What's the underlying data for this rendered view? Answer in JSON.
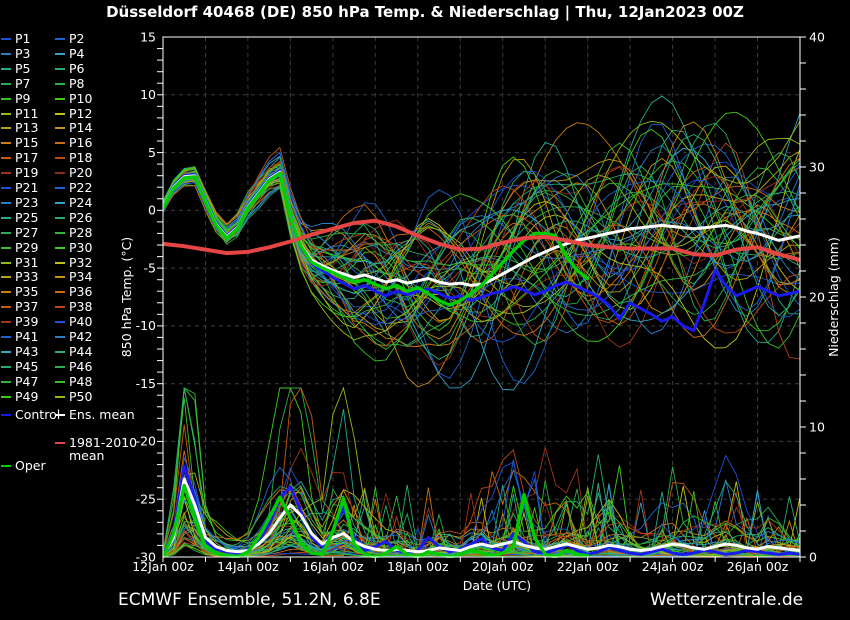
{
  "header": {
    "title": "Düsseldorf 40468 (DE)  850 hPa Temp. & Niederschlag | Thu, 12Jan2023 00Z"
  },
  "footer": {
    "left": "ECMWF Ensemble, 51.2N, 6.8E",
    "right": "Wetterzentrale.de"
  },
  "legend": {
    "members": [
      "P1",
      "P2",
      "P3",
      "P4",
      "P5",
      "P6",
      "P7",
      "P8",
      "P9",
      "P10",
      "P11",
      "P12",
      "P13",
      "P14",
      "P15",
      "P16",
      "P17",
      "P18",
      "P19",
      "P20",
      "P21",
      "P22",
      "P23",
      "P24",
      "P25",
      "P26",
      "P27",
      "P28",
      "P29",
      "P30",
      "P31",
      "P32",
      "P33",
      "P34",
      "P35",
      "P36",
      "P37",
      "P38",
      "P39",
      "P40",
      "P41",
      "P42",
      "P43",
      "P44",
      "P45",
      "P46",
      "P47",
      "P48",
      "P49",
      "P50"
    ],
    "control_label": "Control",
    "ens_mean_label": "Ens. mean",
    "clim_label_line1": "1981-2010",
    "clim_label_line2": "mean",
    "oper_label": "Oper"
  },
  "colors": {
    "background": "#000000",
    "grid": "#3d3d3d",
    "border": "#ffffff",
    "text": "#ffffff",
    "control": "#1a1af0",
    "ens_mean": "#ffffff",
    "clim_mean": "#e54545",
    "oper": "#00cc00",
    "member_cycle": [
      "#1e4fd8",
      "#2063cf",
      "#2a7ec6",
      "#2ea3c4",
      "#27a98e",
      "#27ab6f",
      "#29ad52",
      "#2fb53b",
      "#37be29",
      "#3fcc17",
      "#94bb15",
      "#c1c013",
      "#b9a212",
      "#c49110",
      "#ca7f10",
      "#ce6d10",
      "#c85a10",
      "#bc4712",
      "#a33418",
      "#8c2a1a"
    ]
  },
  "chart_data": {
    "type": "line",
    "title": "Düsseldorf 40468 (DE)  850 hPa Temp. & Niederschlag | Thu, 12Jan2023 00Z",
    "x_axis": {
      "label": "Date (UTC)",
      "range_hours": [
        0,
        360
      ],
      "day_gridlines": true,
      "ticks": [
        {
          "label": "12Jan 00z",
          "hour": 0
        },
        {
          "label": "14Jan 00z",
          "hour": 48
        },
        {
          "label": "16Jan 00z",
          "hour": 96
        },
        {
          "label": "18Jan 00z",
          "hour": 144
        },
        {
          "label": "20Jan 00z",
          "hour": 192
        },
        {
          "label": "22Jan 00z",
          "hour": 240
        },
        {
          "label": "24Jan 00z",
          "hour": 288
        },
        {
          "label": "26Jan 00z",
          "hour": 336
        }
      ]
    },
    "y_left": {
      "label": "850 hPa Temp. (°C)",
      "range": [
        -30,
        15
      ],
      "major_ticks": [
        15,
        10,
        5,
        0,
        -5,
        -10,
        -15,
        -20,
        -25,
        -30
      ],
      "minor_step": 1
    },
    "y_right": {
      "label": "Niederschlag (mm)",
      "range": [
        0,
        40
      ],
      "major_ticks": [
        40,
        30,
        20,
        10,
        0
      ],
      "minor_step": 2
    },
    "series": [
      {
        "id": "ens_mean_temp",
        "name": "Ens. mean",
        "axis": "left",
        "step_hours": 6,
        "values": [
          0.3,
          2.0,
          2.9,
          3.0,
          0.8,
          -1.2,
          -2.3,
          -1.5,
          0.3,
          1.5,
          2.7,
          3.3,
          -0.5,
          -3.0,
          -4.3,
          -4.8,
          -5.2,
          -5.5,
          -5.8,
          -5.6,
          -5.9,
          -6.2,
          -6.0,
          -6.3,
          -6.1,
          -5.9,
          -6.2,
          -6.4,
          -6.3,
          -6.5,
          -6.4,
          -6.0,
          -5.5,
          -5.0,
          -4.5,
          -4.0,
          -3.6,
          -3.2,
          -2.9,
          -2.6,
          -2.4,
          -2.2,
          -2.0,
          -1.8,
          -1.6,
          -1.5,
          -1.4,
          -1.3,
          -1.4,
          -1.5,
          -1.6,
          -1.5,
          -1.4,
          -1.3,
          -1.5,
          -1.8,
          -2.0,
          -2.3,
          -2.6,
          -2.4,
          -2.2
        ]
      },
      {
        "id": "control_temp",
        "name": "Control",
        "axis": "left",
        "step_hours": 6,
        "values": [
          0.3,
          2.1,
          3.0,
          3.1,
          0.9,
          -1.1,
          -2.2,
          -1.4,
          0.4,
          1.6,
          2.8,
          3.4,
          -0.4,
          -3.2,
          -4.6,
          -5.2,
          -5.8,
          -6.3,
          -6.8,
          -6.5,
          -7.0,
          -7.4,
          -7.0,
          -7.3,
          -7.0,
          -6.8,
          -7.2,
          -7.6,
          -7.4,
          -7.8,
          -7.5,
          -7.2,
          -7.0,
          -6.6,
          -6.9,
          -7.3,
          -7.0,
          -6.5,
          -6.2,
          -6.6,
          -7.0,
          -7.5,
          -8.2,
          -9.4,
          -8.0,
          -8.5,
          -9.0,
          -9.6,
          -9.2,
          -10.0,
          -10.4,
          -8.0,
          -5.2,
          -6.5,
          -7.4,
          -7.0,
          -6.6,
          -7.0,
          -7.4,
          -7.2,
          -7.0
        ]
      },
      {
        "id": "oper_temp",
        "name": "Oper",
        "axis": "left",
        "step_hours": 6,
        "values": [
          0.2,
          1.9,
          2.8,
          2.9,
          0.7,
          -1.3,
          -2.4,
          -1.6,
          0.2,
          1.4,
          2.6,
          3.2,
          -0.6,
          -3.1,
          -4.5,
          -5.0,
          -5.4,
          -5.8,
          -6.2,
          -6.0,
          -6.4,
          -6.8,
          -6.5,
          -7.0,
          -6.7,
          -7.2,
          -7.8,
          -8.2,
          -7.8,
          -7.2,
          -6.5,
          -5.5,
          -4.5,
          -3.5,
          -2.6,
          -2.0,
          -2.0,
          -2.2,
          -4.0,
          -5.2,
          -5.9
        ]
      },
      {
        "id": "clim_mean_temp",
        "name": "1981-2010 mean",
        "axis": "left",
        "step_hours": 12,
        "values": [
          -2.9,
          -3.1,
          -3.4,
          -3.7,
          -3.6,
          -3.2,
          -2.7,
          -2.1,
          -1.6,
          -1.1,
          -0.9,
          -1.4,
          -2.2,
          -2.9,
          -3.4,
          -3.3,
          -2.8,
          -2.4,
          -2.3,
          -2.6,
          -3.0,
          -3.2,
          -3.3,
          -3.3,
          -3.3,
          -3.8,
          -3.9,
          -3.4,
          -3.2,
          -3.8,
          -4.3
        ]
      },
      {
        "id": "ens_mean_precip",
        "name": "Ens. mean",
        "axis": "right",
        "step_hours": 6,
        "values": [
          0.1,
          1.5,
          6.0,
          4.0,
          1.5,
          0.8,
          0.5,
          0.4,
          0.5,
          1.0,
          1.8,
          3.0,
          4.0,
          3.2,
          1.8,
          1.0,
          1.5,
          1.8,
          1.2,
          0.8,
          0.6,
          0.5,
          0.6,
          0.5,
          0.4,
          0.5,
          0.7,
          0.6,
          0.5,
          0.8,
          1.0,
          0.8,
          1.0,
          1.2,
          0.9,
          0.7,
          0.6,
          0.8,
          1.0,
          0.8,
          0.6,
          0.7,
          0.9,
          0.8,
          0.6,
          0.5,
          0.6,
          0.8,
          1.0,
          0.9,
          0.7,
          0.6,
          0.8,
          1.0,
          0.9,
          0.7,
          0.6,
          0.8,
          0.7,
          0.6,
          0.5
        ]
      },
      {
        "id": "control_precip",
        "name": "Control",
        "axis": "right",
        "step_hours": 6,
        "values": [
          0.1,
          2.0,
          7.0,
          4.5,
          1.2,
          0.6,
          0.4,
          0.3,
          0.6,
          1.2,
          2.5,
          4.5,
          5.4,
          3.5,
          1.5,
          0.8,
          2.0,
          3.8,
          1.5,
          0.5,
          0.8,
          1.2,
          0.5,
          0.3,
          0.5,
          1.5,
          0.8,
          0.4,
          0.6,
          1.0,
          1.4,
          0.7,
          0.5,
          1.8,
          1.2,
          0.4,
          0.3,
          0.6,
          1.0,
          0.5,
          0.2,
          0.4,
          0.8,
          0.5,
          0.3,
          0.2,
          0.4,
          0.6,
          0.3,
          0.2,
          0.3,
          0.5,
          0.4,
          0.2,
          0.3,
          0.5,
          0.4,
          0.3,
          0.2,
          0.3,
          0.2
        ]
      },
      {
        "id": "oper_precip",
        "name": "Oper",
        "axis": "right",
        "step_hours": 6,
        "values": [
          0.0,
          1.8,
          5.5,
          3.0,
          0.8,
          0.3,
          0.1,
          0.0,
          0.4,
          1.5,
          3.0,
          4.6,
          3.0,
          1.0,
          0.3,
          0.2,
          2.0,
          4.5,
          1.0,
          0.2,
          0.0,
          0.3,
          0.8,
          0.2,
          0.0,
          0.4,
          0.2,
          0.0,
          0.2,
          0.5,
          0.3,
          0.1,
          0.3,
          0.8,
          4.8,
          1.5,
          0.2,
          0.0,
          0.5,
          0.2,
          0.1
        ]
      }
    ],
    "ensemble": {
      "member_count": 50,
      "temp_spread_sd": [
        [
          0,
          0.3
        ],
        [
          24,
          0.5
        ],
        [
          48,
          0.7
        ],
        [
          66,
          0.9
        ],
        [
          84,
          1.6
        ],
        [
          108,
          2.6
        ],
        [
          144,
          3.6
        ],
        [
          192,
          4.3
        ],
        [
          240,
          4.6
        ],
        [
          300,
          4.7
        ],
        [
          360,
          4.7
        ]
      ]
    }
  }
}
